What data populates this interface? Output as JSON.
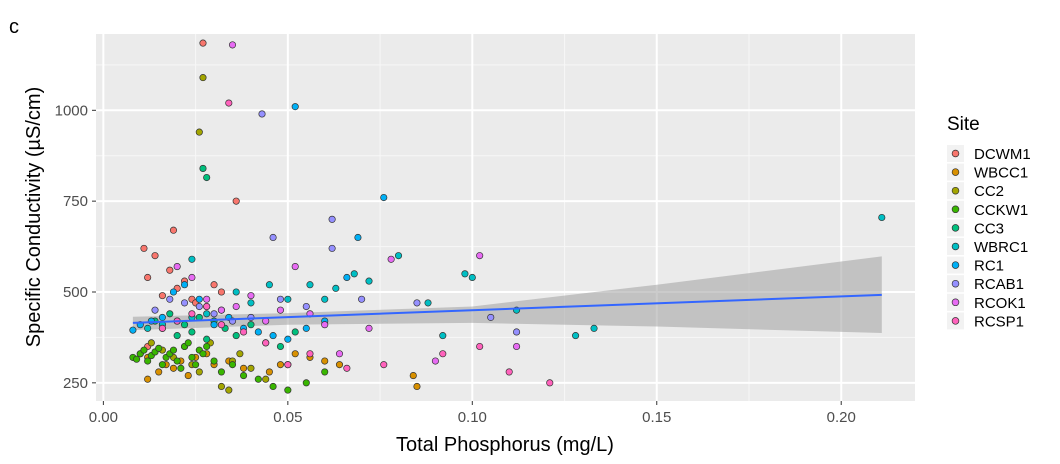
{
  "chart_data": {
    "type": "scatter",
    "panel_label": "c",
    "xlabel": "Total Phosphorus (mg/L)",
    "ylabel": "Specific Conductivity (µS/cm)",
    "xlim": [
      -0.002,
      0.22
    ],
    "ylim": [
      200,
      1210
    ],
    "x_ticks": [
      0.0,
      0.05,
      0.1,
      0.15,
      0.2
    ],
    "x_tick_labels": [
      "0.00",
      "0.05",
      "0.10",
      "0.15",
      "0.20"
    ],
    "y_ticks": [
      250,
      500,
      750,
      1000
    ],
    "y_tick_labels": [
      "250",
      "500",
      "750",
      "1000"
    ],
    "x_minor": [
      0.025,
      0.075,
      0.125,
      0.175
    ],
    "y_minor": [
      375,
      625,
      875,
      1125
    ],
    "legend_title": "Site",
    "legend_position": "right",
    "series": [
      {
        "name": "DCWM1",
        "color": "#F8766D",
        "x": [
          0.011,
          0.012,
          0.014,
          0.016,
          0.018,
          0.02,
          0.022,
          0.024,
          0.025,
          0.028,
          0.03,
          0.032,
          0.036,
          0.012,
          0.019,
          0.027
        ],
        "y": [
          620,
          540,
          600,
          490,
          560,
          510,
          530,
          480,
          470,
          460,
          520,
          500,
          750,
          350,
          670,
          1185
        ]
      },
      {
        "name": "WBCC1",
        "color": "#D89000",
        "x": [
          0.012,
          0.015,
          0.017,
          0.019,
          0.021,
          0.023,
          0.025,
          0.028,
          0.03,
          0.034,
          0.038,
          0.045,
          0.048,
          0.052,
          0.056,
          0.06,
          0.064,
          0.084,
          0.085,
          0.012
        ],
        "y": [
          260,
          280,
          300,
          290,
          310,
          270,
          320,
          330,
          300,
          310,
          290,
          280,
          300,
          330,
          320,
          310,
          300,
          270,
          240,
          320
        ]
      },
      {
        "name": "CC2",
        "color": "#A3A500",
        "x": [
          0.01,
          0.013,
          0.016,
          0.019,
          0.022,
          0.024,
          0.026,
          0.029,
          0.032,
          0.035,
          0.04,
          0.044,
          0.05,
          0.027,
          0.026,
          0.034,
          0.037
        ],
        "y": [
          330,
          360,
          340,
          320,
          350,
          300,
          280,
          360,
          240,
          310,
          290,
          260,
          300,
          1090,
          940,
          230,
          330
        ]
      },
      {
        "name": "CCKW1",
        "color": "#39B600",
        "x": [
          0.008,
          0.009,
          0.01,
          0.011,
          0.012,
          0.013,
          0.014,
          0.015,
          0.016,
          0.017,
          0.018,
          0.019,
          0.02,
          0.021,
          0.022,
          0.023,
          0.024,
          0.025,
          0.026,
          0.027,
          0.028,
          0.03,
          0.032,
          0.035,
          0.038,
          0.042,
          0.046,
          0.05,
          0.055,
          0.06
        ],
        "y": [
          320,
          315,
          330,
          340,
          310,
          325,
          335,
          345,
          300,
          320,
          330,
          340,
          310,
          290,
          350,
          360,
          320,
          300,
          340,
          330,
          350,
          310,
          280,
          300,
          270,
          260,
          240,
          230,
          250,
          280
        ]
      },
      {
        "name": "CC3",
        "color": "#00BF7D",
        "x": [
          0.014,
          0.016,
          0.018,
          0.02,
          0.022,
          0.024,
          0.026,
          0.028,
          0.03,
          0.033,
          0.036,
          0.04,
          0.044,
          0.048,
          0.052,
          0.027,
          0.028
        ],
        "y": [
          420,
          400,
          440,
          380,
          410,
          390,
          430,
          370,
          420,
          400,
          380,
          410,
          360,
          350,
          390,
          840,
          815
        ]
      },
      {
        "name": "WBRC1",
        "color": "#00BFC4",
        "x": [
          0.012,
          0.016,
          0.02,
          0.024,
          0.028,
          0.032,
          0.036,
          0.04,
          0.045,
          0.05,
          0.056,
          0.06,
          0.068,
          0.072,
          0.08,
          0.088,
          0.092,
          0.098,
          0.1,
          0.112,
          0.128,
          0.133,
          0.211,
          0.024,
          0.063
        ],
        "y": [
          400,
          410,
          420,
          430,
          440,
          450,
          500,
          470,
          520,
          480,
          520,
          480,
          550,
          530,
          600,
          470,
          380,
          550,
          540,
          450,
          380,
          400,
          705,
          590,
          510
        ]
      },
      {
        "name": "RC1",
        "color": "#00B0F6",
        "x": [
          0.008,
          0.01,
          0.013,
          0.016,
          0.019,
          0.022,
          0.026,
          0.03,
          0.034,
          0.038,
          0.042,
          0.046,
          0.05,
          0.055,
          0.06,
          0.066,
          0.069,
          0.076,
          0.052
        ],
        "y": [
          395,
          410,
          420,
          430,
          500,
          520,
          480,
          410,
          430,
          400,
          390,
          380,
          370,
          400,
          420,
          540,
          650,
          760,
          1010
        ]
      },
      {
        "name": "RCAB1",
        "color": "#9590FF",
        "x": [
          0.014,
          0.018,
          0.022,
          0.026,
          0.03,
          0.035,
          0.04,
          0.043,
          0.048,
          0.055,
          0.062,
          0.062,
          0.07,
          0.085,
          0.105,
          0.112,
          0.046
        ],
        "y": [
          450,
          480,
          470,
          460,
          440,
          420,
          430,
          990,
          480,
          460,
          700,
          620,
          480,
          470,
          430,
          390,
          650
        ]
      },
      {
        "name": "RCOK1",
        "color": "#E76BF3",
        "x": [
          0.02,
          0.024,
          0.028,
          0.032,
          0.036,
          0.04,
          0.044,
          0.048,
          0.052,
          0.056,
          0.06,
          0.064,
          0.072,
          0.078,
          0.09,
          0.102,
          0.112,
          0.035
        ],
        "y": [
          570,
          540,
          480,
          450,
          460,
          490,
          420,
          450,
          570,
          440,
          410,
          330,
          400,
          590,
          310,
          600,
          350,
          1180
        ]
      },
      {
        "name": "RCSP1",
        "color": "#FF62BC",
        "x": [
          0.016,
          0.02,
          0.024,
          0.028,
          0.032,
          0.034,
          0.038,
          0.044,
          0.05,
          0.056,
          0.066,
          0.076,
          0.092,
          0.102,
          0.11,
          0.121
        ],
        "y": [
          400,
          420,
          440,
          460,
          410,
          1020,
          390,
          360,
          300,
          330,
          290,
          300,
          330,
          350,
          280,
          250
        ]
      }
    ],
    "trend": {
      "x": [
        0.008,
        0.211
      ],
      "y": [
        415,
        492
      ],
      "color": "#3366FF"
    },
    "confidence_band": {
      "x": [
        0.008,
        0.05,
        0.1,
        0.15,
        0.211
      ],
      "lower": [
        395,
        410,
        415,
        405,
        387
      ],
      "upper": [
        432,
        442,
        460,
        520,
        598
      ],
      "color": "#a0a0a0"
    }
  }
}
